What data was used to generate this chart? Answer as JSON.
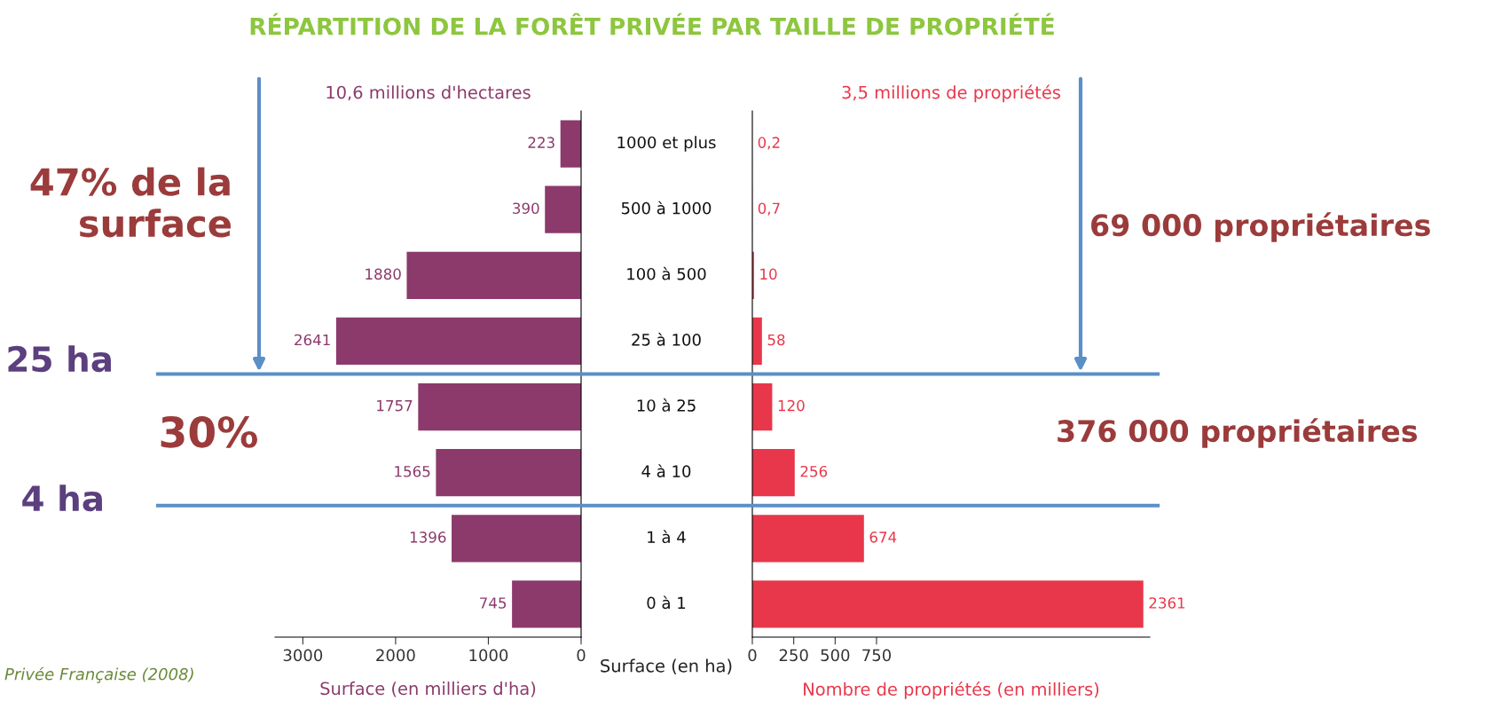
{
  "chart_data": [
    {
      "type": "bar",
      "orientation": "horizontal",
      "title": "RÉPARTITION DE LA FORÊT PRIVÉE PAR TAILLE DE PROPRIÉTÉ",
      "subtitle": "10,6 millions d'hectares",
      "xlabel": "Surface (en milliers d'ha)",
      "ylabel": "Surface (en ha)",
      "categories": [
        "1000 et plus",
        "500 à 1000",
        "100 à 500",
        "25 à 100",
        "10 à 25",
        "4 à 10",
        "1 à 4",
        "0 à 1"
      ],
      "values": [
        223,
        390,
        1880,
        2641,
        1757,
        1565,
        1396,
        745
      ],
      "color": "#8b3a6b",
      "value_labels": [
        "223",
        "390",
        "1880",
        "2641",
        "1757",
        "1565",
        "1396",
        "745"
      ],
      "xlim": [
        3300,
        0
      ],
      "xticks": [
        3000,
        2000,
        1000,
        0
      ],
      "annotations": [
        "47% de la\nsurface",
        "30%",
        "Privée Française (2008)",
        "25 ha",
        "4 ha"
      ]
    },
    {
      "type": "bar",
      "orientation": "horizontal",
      "subtitle": "3,5 millions de propriétés",
      "xlabel": "Nombre de propriétés (en milliers)",
      "categories": [
        null,
        null,
        null,
        null,
        null,
        null,
        null,
        null
      ],
      "values": [
        0.2,
        0.7,
        10,
        58,
        120,
        256,
        674,
        2361
      ],
      "color": "#e8374a",
      "value_labels": [
        "0,2",
        "0,7",
        "10",
        "58",
        "120",
        "256",
        "674",
        "2361"
      ],
      "xlim": [
        0,
        2400
      ],
      "xticks": [
        0,
        250,
        500,
        750
      ],
      "annotations": [
        "69 000 propriétaires",
        "376 000 propriétaires"
      ]
    }
  ]
}
